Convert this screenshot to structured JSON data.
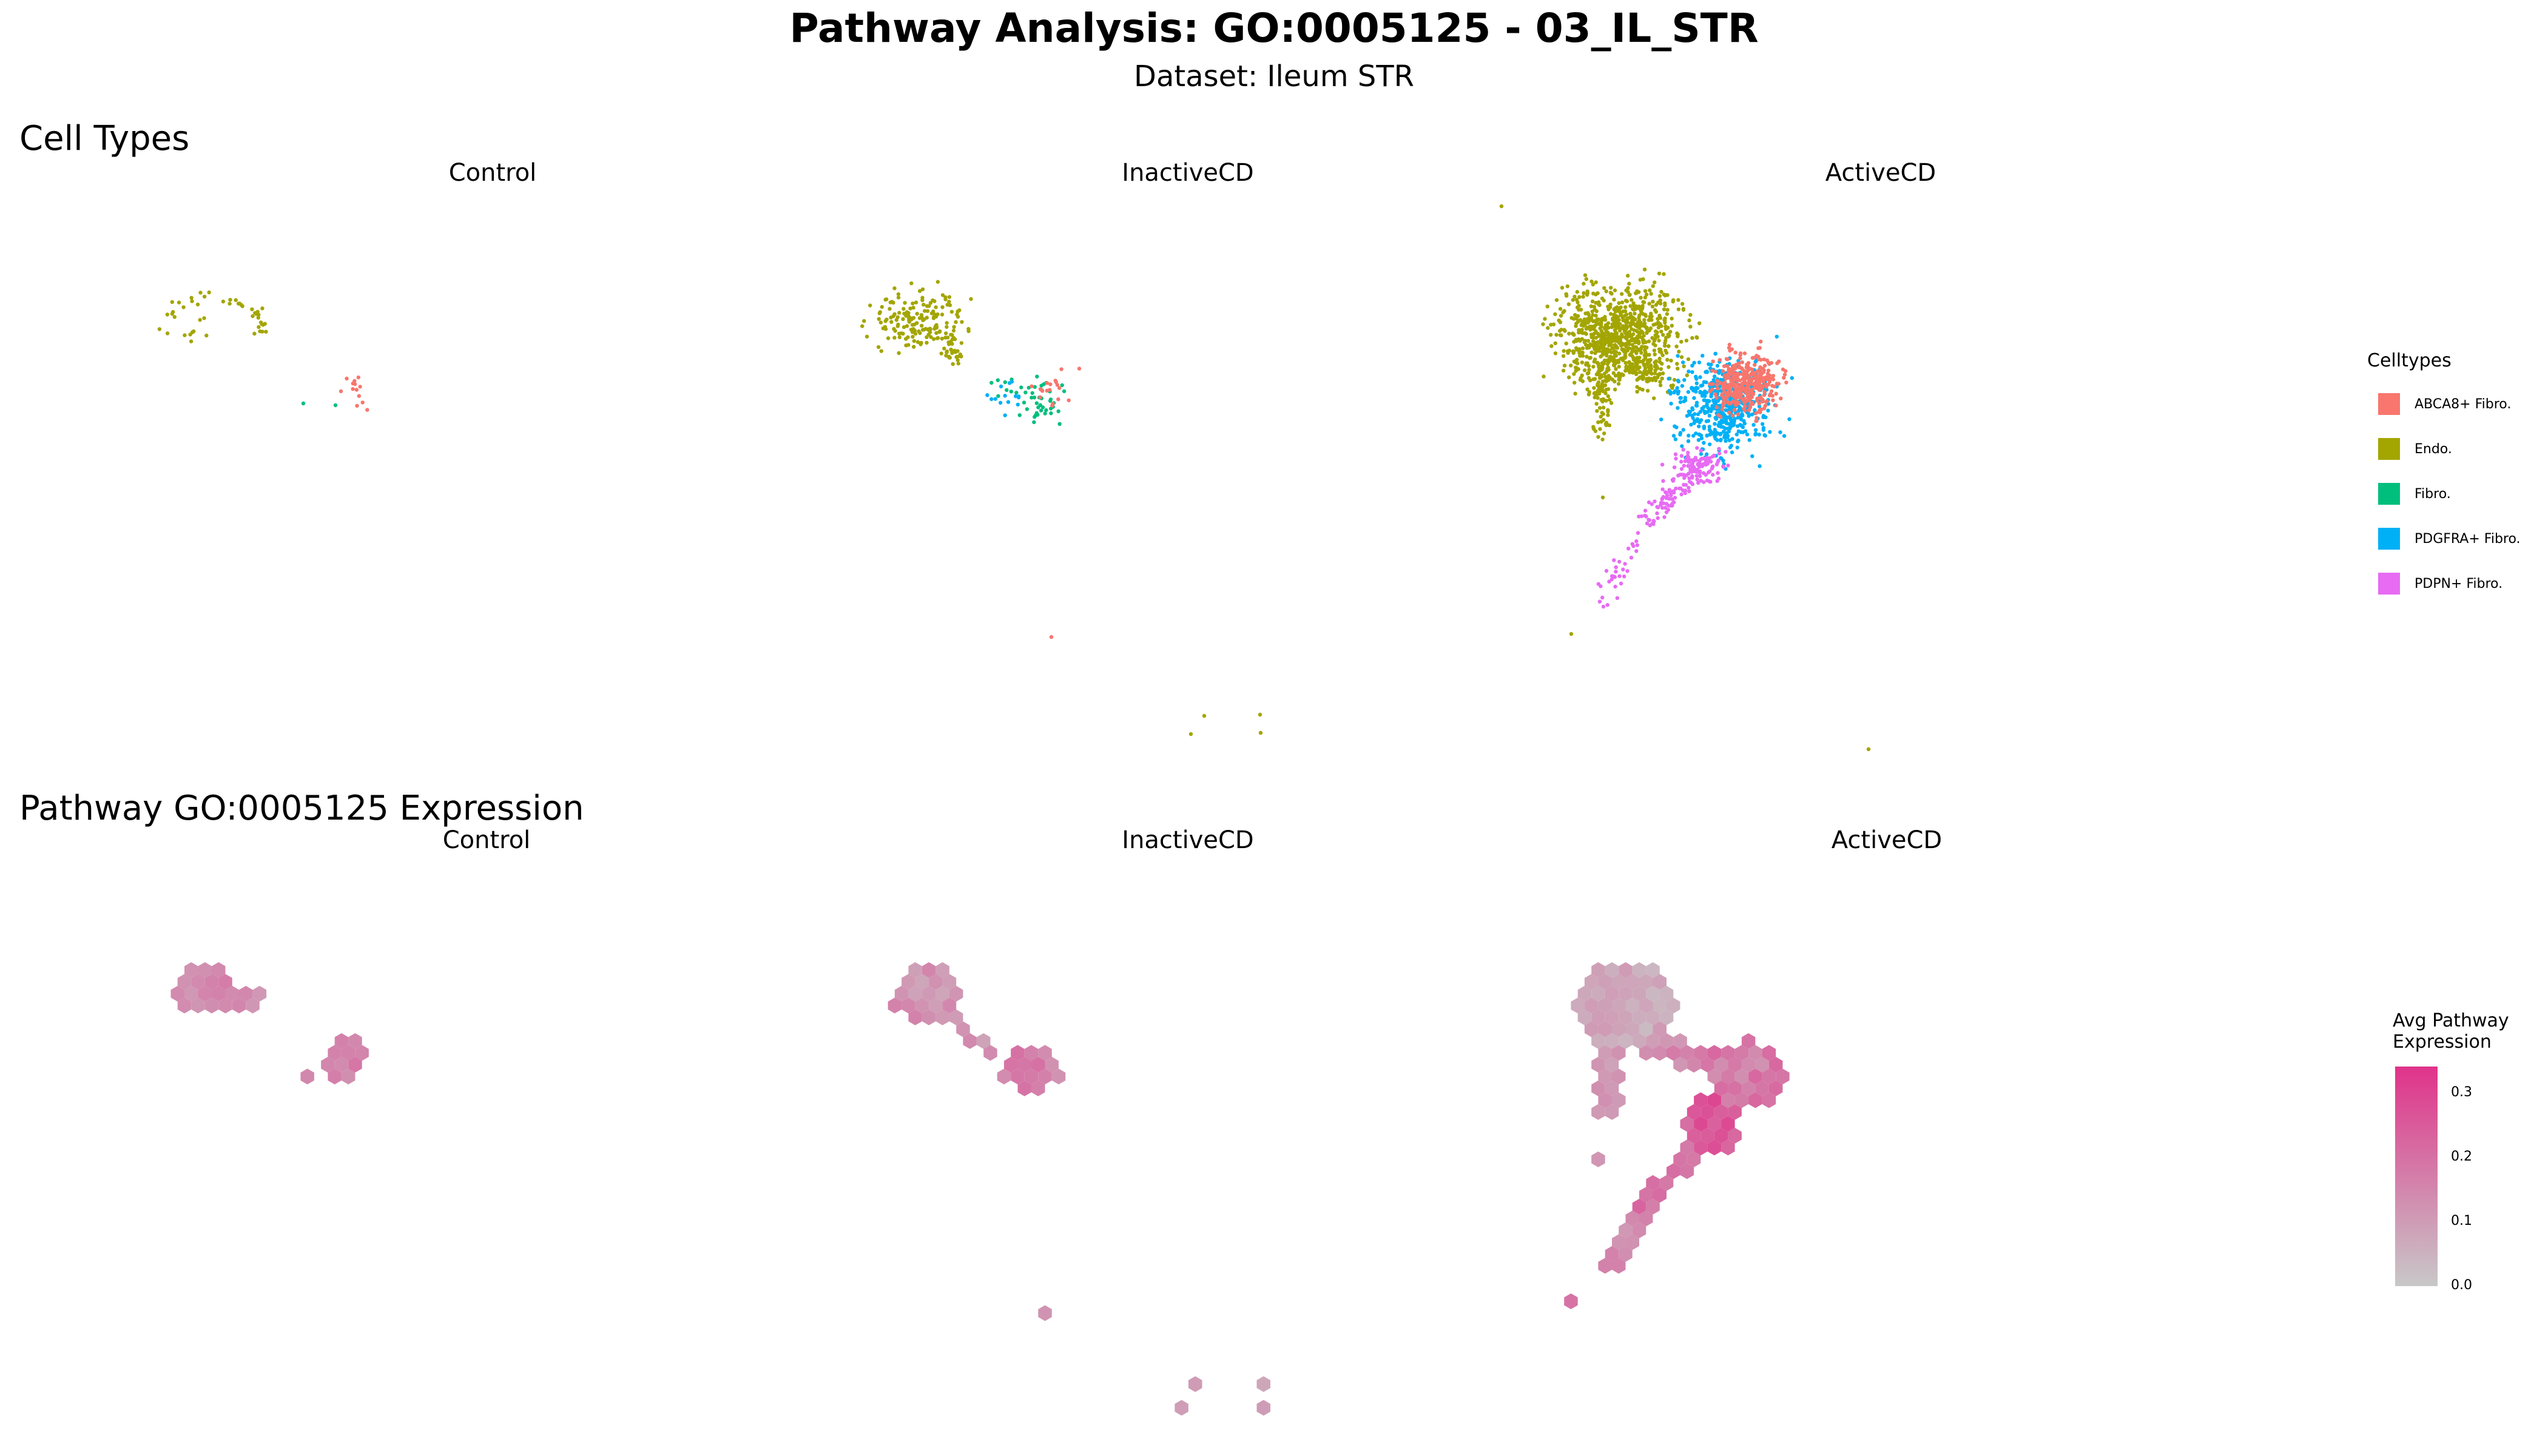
{
  "title": "Pathway Analysis: GO:0005125 - 03_IL_STR",
  "subtitle": "Dataset: Ileum STR",
  "sections": {
    "celltypes_title": "Cell Types",
    "expression_title": "Pathway GO:0005125 Expression"
  },
  "panels": [
    "Control",
    "InactiveCD",
    "ActiveCD"
  ],
  "legend": {
    "celltypes_title": "Celltypes",
    "celltypes": [
      {
        "label": "ABCA8+ Fibro.",
        "color": "#F8766D"
      },
      {
        "label": "Endo.",
        "color": "#A3A500"
      },
      {
        "label": "Fibro.",
        "color": "#00BF7D"
      },
      {
        "label": "PDGFRA+ Fibro.",
        "color": "#00B0F6"
      },
      {
        "label": "PDPN+ Fibro.",
        "color": "#E76BF3"
      }
    ],
    "expression_title_line1": "Avg Pathway",
    "expression_title_line2": "Expression",
    "expression_ticks": [
      "0.3",
      "0.2",
      "0.1",
      "0.0"
    ],
    "expression_low_color": "#C8C8C8",
    "expression_high_color": "#E0338A"
  },
  "chart_data": [
    {
      "type": "scatter",
      "title": "Cell Types",
      "facets": [
        "Control",
        "InactiveCD",
        "ActiveCD"
      ],
      "color_by": "Celltypes",
      "series": [
        {
          "name": "ABCA8+ Fibro.",
          "facets": [
            "Control",
            "InactiveCD",
            "ActiveCD"
          ]
        },
        {
          "name": "Endo.",
          "facets": [
            "Control",
            "InactiveCD",
            "ActiveCD"
          ]
        },
        {
          "name": "Fibro.",
          "facets": [
            "Control",
            "InactiveCD"
          ]
        },
        {
          "name": "PDGFRA+ Fibro.",
          "facets": [
            "Control",
            "InactiveCD",
            "ActiveCD"
          ]
        },
        {
          "name": "PDPN+ Fibro.",
          "facets": [
            "ActiveCD"
          ]
        }
      ],
      "axes_visible": false,
      "grid": false,
      "legend_position": "right"
    },
    {
      "type": "heatmap",
      "subtype": "hexbin",
      "title": "Pathway GO:0005125 Expression",
      "facets": [
        "Control",
        "InactiveCD",
        "ActiveCD"
      ],
      "color_scale": {
        "label": "Avg Pathway Expression",
        "range": [
          0.0,
          0.33
        ],
        "ticks": [
          0.0,
          0.1,
          0.2,
          0.3
        ]
      },
      "axes_visible": false,
      "grid": false,
      "legend_position": "right"
    }
  ]
}
